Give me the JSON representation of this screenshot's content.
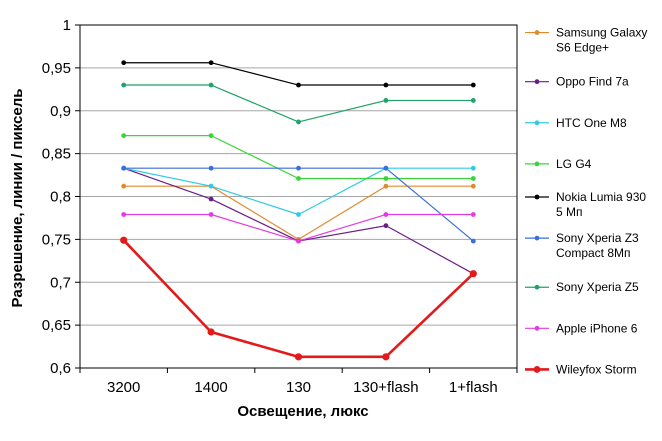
{
  "chart_data": {
    "type": "line",
    "xlabel": "Освещение,  люкс",
    "ylabel": "Разрешение,  линии / пиксель",
    "categories": [
      "3200",
      "1400",
      "130",
      "130+flash",
      "1+flash"
    ],
    "ylim": [
      0.6,
      1.0
    ],
    "ytick_labels": [
      "0,6",
      "0,65",
      "0,7",
      "0,75",
      "0,8",
      "0,85",
      "0,9",
      "0,95",
      "1"
    ],
    "grid": "horizontal",
    "legend_position": "right",
    "series": [
      {
        "name": "Samsung Galaxy S6 Edge+",
        "label_lines": [
          "Samsung Galaxy",
          "S6 Edge+"
        ],
        "color": "#e08a2e",
        "width": 1.2,
        "values": [
          0.812,
          0.812,
          0.75,
          0.812,
          0.812
        ]
      },
      {
        "name": "Oppo Find 7a",
        "label_lines": [
          "Oppo Find 7a"
        ],
        "color": "#6a1e8a",
        "width": 1.2,
        "values": [
          0.833,
          0.797,
          0.748,
          0.766,
          0.71
        ]
      },
      {
        "name": "HTC One M8",
        "label_lines": [
          "HTC One M8"
        ],
        "color": "#2ecbe6",
        "width": 1.2,
        "values": [
          0.833,
          0.812,
          0.779,
          0.833,
          0.833
        ]
      },
      {
        "name": "LG G4",
        "label_lines": [
          "LG G4"
        ],
        "color": "#3ad43a",
        "width": 1.2,
        "values": [
          0.871,
          0.871,
          0.821,
          0.821,
          0.821
        ]
      },
      {
        "name": "Nokia Lumia 930 5 Мп",
        "label_lines": [
          "Nokia Lumia 930",
          "5 Мп"
        ],
        "color": "#000000",
        "width": 1.2,
        "values": [
          0.956,
          0.956,
          0.93,
          0.93,
          0.93
        ]
      },
      {
        "name": "Sony Xperia Z3 Compact 8Мп",
        "label_lines": [
          "Sony Xperia Z3",
          "Compact 8Мп"
        ],
        "color": "#3a6fd8",
        "width": 1.2,
        "values": [
          0.833,
          0.833,
          0.833,
          0.833,
          0.748
        ]
      },
      {
        "name": "Sony Xperia Z5",
        "label_lines": [
          "Sony Xperia Z5"
        ],
        "color": "#1fa366",
        "width": 1.2,
        "values": [
          0.93,
          0.93,
          0.887,
          0.912,
          0.912
        ]
      },
      {
        "name": "Apple iPhone 6",
        "label_lines": [
          "Apple iPhone 6"
        ],
        "color": "#e33be3",
        "width": 1.2,
        "values": [
          0.779,
          0.779,
          0.748,
          0.779,
          0.779
        ]
      },
      {
        "name": "Wileyfox Storm",
        "label_lines": [
          "Wileyfox Storm"
        ],
        "color": "#e31a1a",
        "width": 2.6,
        "values": [
          0.749,
          0.642,
          0.613,
          0.613,
          0.71
        ]
      }
    ]
  }
}
